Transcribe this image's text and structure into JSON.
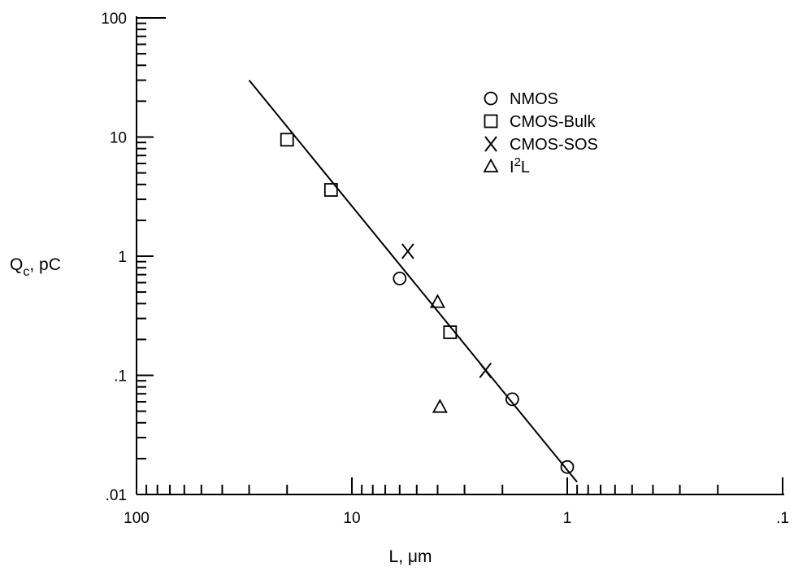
{
  "chart_data": {
    "type": "scatter",
    "xscale": "log",
    "yscale": "log",
    "x_reversed": true,
    "xlim": [
      100,
      0.1
    ],
    "ylim": [
      0.01,
      100
    ],
    "grid": false,
    "legend_position": "top-right",
    "xlabel_parts": [
      "L, ",
      "μ",
      "m"
    ],
    "ylabel_parts": [
      "Q",
      "c",
      ", pC"
    ],
    "x_ticks": [
      {
        "value": 100,
        "label": "100"
      },
      {
        "value": 10,
        "label": "10"
      },
      {
        "value": 1,
        "label": "1"
      },
      {
        "value": 0.1,
        "label": ".1"
      }
    ],
    "y_ticks": [
      {
        "value": 100,
        "label": "100"
      },
      {
        "value": 10,
        "label": "10"
      },
      {
        "value": 1,
        "label": "1"
      },
      {
        "value": 0.1,
        "label": ".1"
      },
      {
        "value": 0.01,
        "label": ".01"
      }
    ],
    "fit_line": {
      "x": [
        30,
        0.9
      ],
      "y": [
        30,
        0.0127
      ]
    },
    "series": [
      {
        "name": "NMOS",
        "marker": "circle",
        "x": [
          6,
          1.8,
          1.0
        ],
        "y": [
          0.65,
          0.063,
          0.017
        ]
      },
      {
        "name": "CMOS-Bulk",
        "marker": "square",
        "x": [
          20,
          12.5,
          3.5
        ],
        "y": [
          9.5,
          3.6,
          0.23
        ]
      },
      {
        "name": "CMOS-SOS",
        "marker": "x",
        "x": [
          5.5,
          2.4
        ],
        "y": [
          1.1,
          0.11
        ]
      },
      {
        "name": "I2L",
        "marker": "triangle",
        "name_parts": [
          "I",
          "2",
          "L"
        ],
        "x": [
          4.0,
          3.9
        ],
        "y": [
          0.41,
          0.054
        ]
      }
    ]
  }
}
